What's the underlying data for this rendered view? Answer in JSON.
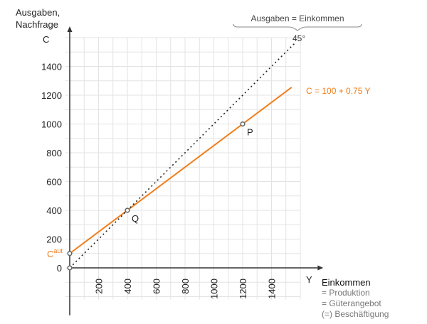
{
  "chart_data": {
    "type": "line",
    "ylabel_lines": [
      "Ausgaben,",
      "Nachfrage"
    ],
    "ysymbol": "C",
    "xsymbol": "Y",
    "xlabel": "Einkommen",
    "xlabel_notes": [
      "= Produktion",
      "= Güterangebot",
      "(=) Beschäftigung"
    ],
    "xlim": [
      0,
      1600
    ],
    "ylim": [
      -200,
      1600
    ],
    "grid": true,
    "grid_step": 100,
    "xticks": [
      200,
      400,
      600,
      800,
      1000,
      1200,
      1400
    ],
    "yticks": [
      0,
      200,
      400,
      600,
      800,
      1000,
      1200,
      1400
    ],
    "series": [
      {
        "name": "C = 100 + 0.75 Y",
        "style": "solid",
        "color": "#f07e1b",
        "x": [
          0,
          1540
        ],
        "y": [
          100,
          1255
        ]
      },
      {
        "name": "45°",
        "style": "dotted",
        "color": "#222222",
        "x": [
          0,
          1565
        ],
        "y": [
          0,
          1565
        ]
      }
    ],
    "points": [
      {
        "label": "",
        "x": 0,
        "y": 0
      },
      {
        "label": "",
        "x": 0,
        "y": 100
      },
      {
        "label": "Q",
        "x": 400,
        "y": 400
      },
      {
        "label": "P",
        "x": 1200,
        "y": 1000
      }
    ],
    "caut_label": {
      "base": "C",
      "sup": "aut"
    },
    "brace_label": "Ausgaben = Einkommen",
    "colors": {
      "consumption": "#f07e1b",
      "axis": "#333333",
      "grid": "#e3e3e3"
    }
  }
}
